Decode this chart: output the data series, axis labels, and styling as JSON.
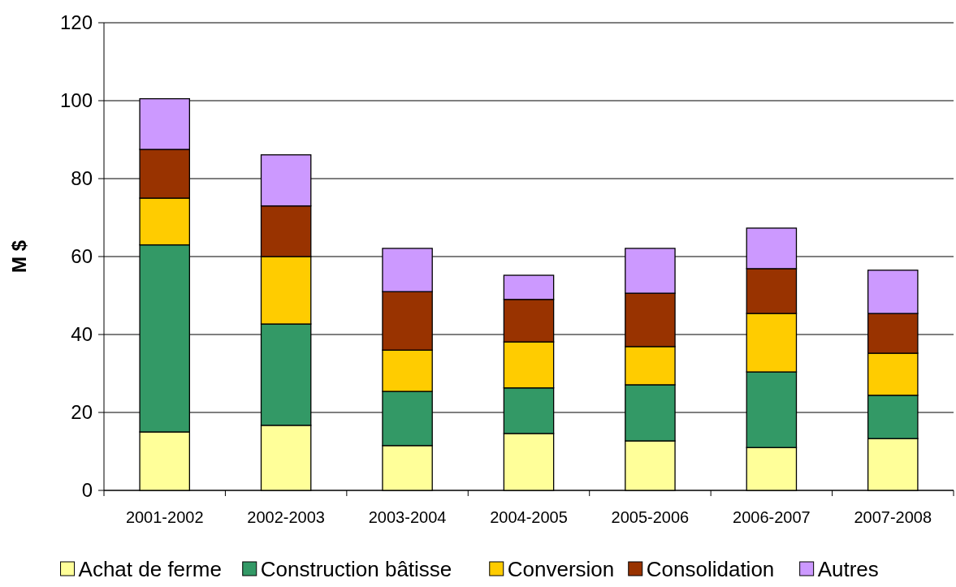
{
  "chart_data": {
    "type": "bar",
    "stacked": true,
    "ylabel": "M $",
    "categories": [
      "2001-2002",
      "2002-2003",
      "2003-2004",
      "2004-2005",
      "2005-2006",
      "2006-2007",
      "2007-2008"
    ],
    "series": [
      {
        "name": "Achat de ferme",
        "color": "#ffff99",
        "values": [
          15,
          16.7,
          11.5,
          14.6,
          12.7,
          11,
          13.3
        ]
      },
      {
        "name": "Construction bâtisse",
        "color": "#339966",
        "values": [
          48,
          26,
          13.9,
          11.7,
          14.4,
          19.4,
          11.1
        ]
      },
      {
        "name": "Conversion",
        "color": "#ffcc00",
        "values": [
          12,
          17.3,
          10.6,
          11.8,
          9.8,
          15,
          10.8
        ]
      },
      {
        "name": "Consolidation",
        "color": "#993300",
        "values": [
          12.5,
          13,
          15,
          10.9,
          13.7,
          11.5,
          10.2
        ]
      },
      {
        "name": "Autres",
        "color": "#cc99ff",
        "values": [
          13,
          13.1,
          11.1,
          6.2,
          11.5,
          10.4,
          11.1
        ]
      }
    ],
    "ylim": [
      0,
      120
    ],
    "yticks": [
      0,
      20,
      40,
      60,
      80,
      100,
      120
    ],
    "grid": "y",
    "legend": "bottom"
  }
}
